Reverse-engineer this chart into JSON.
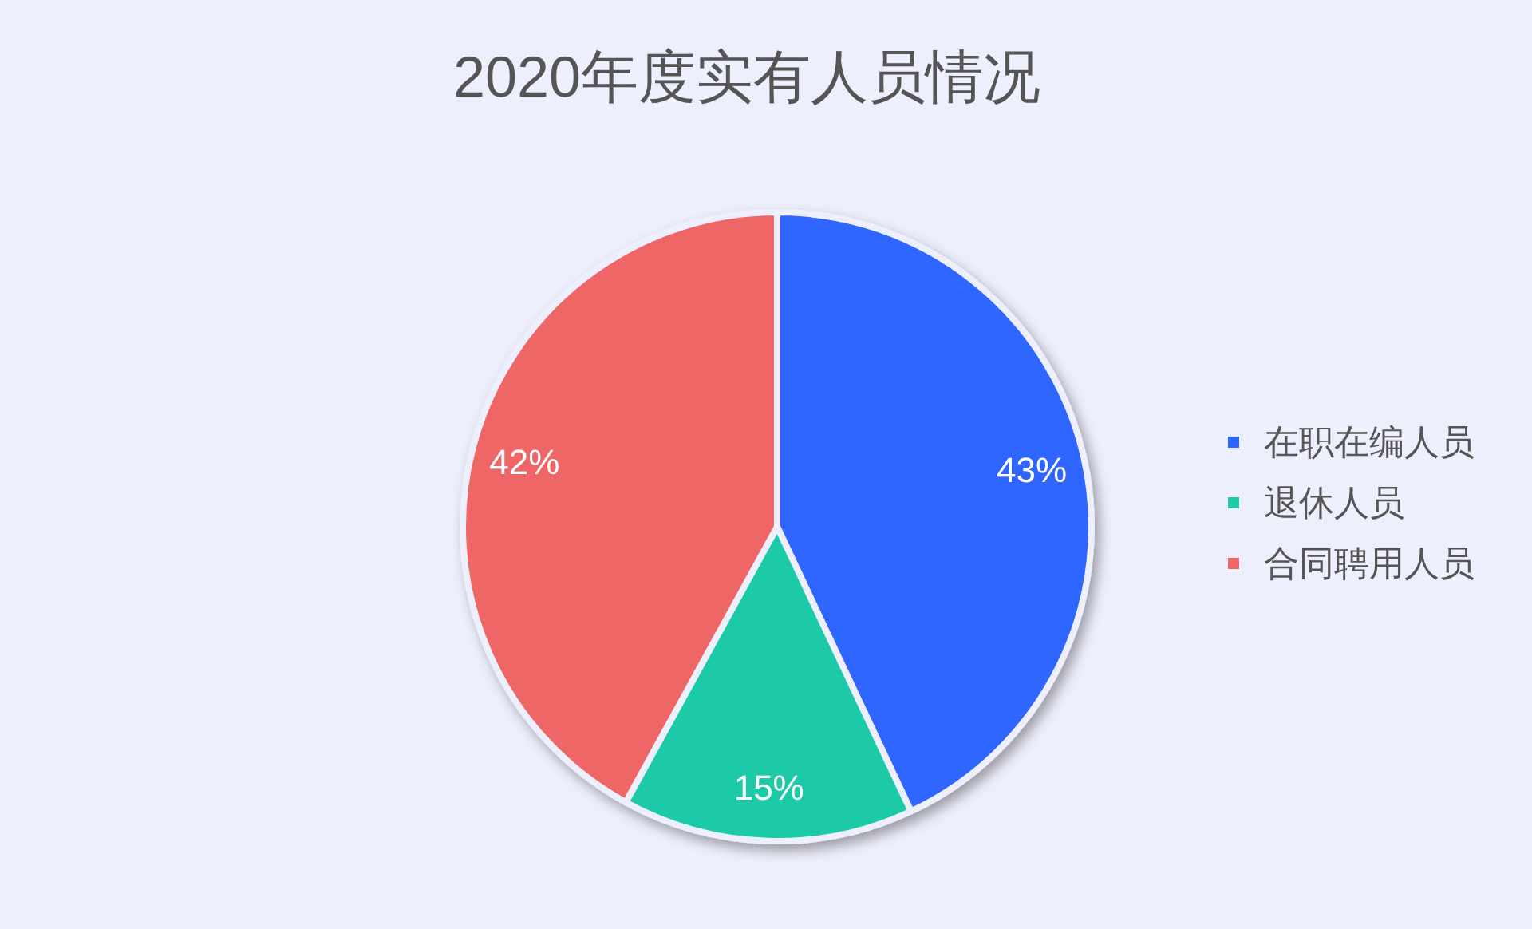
{
  "chart_data": {
    "type": "pie",
    "title": "2020年度实有人员情况",
    "categories": [
      "在职在编人员",
      "退休人员",
      "合同聘用人员"
    ],
    "values": [
      43,
      15,
      42
    ],
    "colors": [
      "#2d66ff",
      "#1fcaa8",
      "#ee6666"
    ],
    "value_labels": [
      "43%",
      "15%",
      "42%"
    ],
    "legend": "right"
  }
}
